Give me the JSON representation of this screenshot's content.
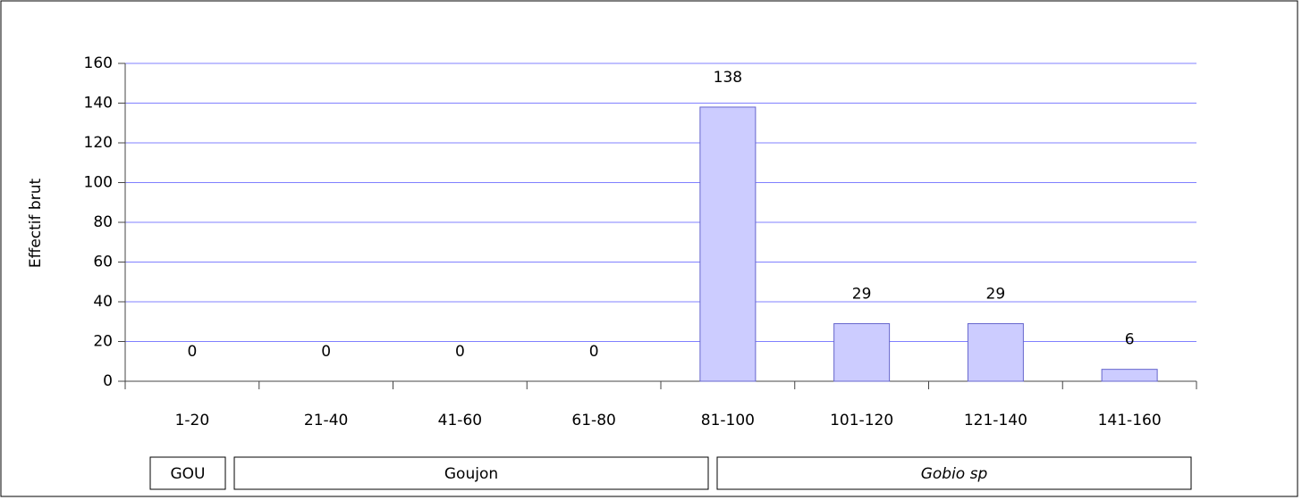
{
  "chart_data": {
    "type": "bar",
    "y_label": "Effectif brut",
    "categories": [
      "1-20",
      "21-40",
      "41-60",
      "61-80",
      "81-100",
      "101-120",
      "121-140",
      "141-160"
    ],
    "values": [
      0,
      0,
      0,
      0,
      138,
      29,
      29,
      6
    ],
    "color": "#ccccff",
    "ylim": [
      0,
      160
    ],
    "yticks": [
      0,
      20,
      40,
      60,
      80,
      100,
      120,
      140,
      160
    ],
    "grid": true,
    "groups": [
      "GOU",
      "Goujon",
      "Gobio sp"
    ]
  }
}
